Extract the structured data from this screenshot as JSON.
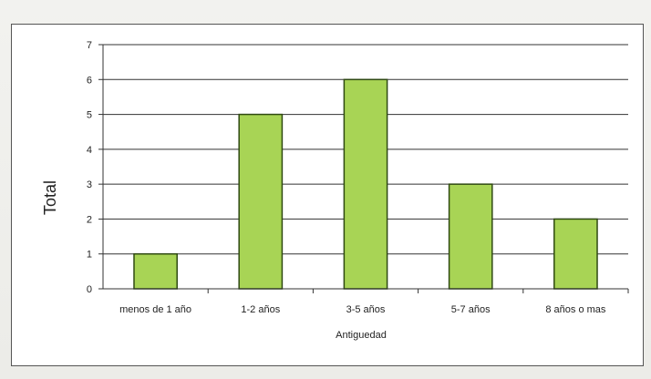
{
  "chart_data": {
    "type": "bar",
    "categories": [
      "menos de 1 año",
      "1-2 años",
      "3-5 años",
      "5-7 años",
      "8 años o mas"
    ],
    "values": [
      1,
      5,
      6,
      3,
      2
    ],
    "title": "",
    "xlabel": "Antiguedad",
    "ylabel": "Total",
    "ylim": [
      0,
      7
    ],
    "yticks": [
      0,
      1,
      2,
      3,
      4,
      5,
      6,
      7
    ],
    "grid": true,
    "legend": "none",
    "colors": {
      "bar_fill": "#a8d455",
      "bar_stroke": "#2f4a12",
      "gridline": "#333333",
      "axis": "#333333"
    }
  }
}
